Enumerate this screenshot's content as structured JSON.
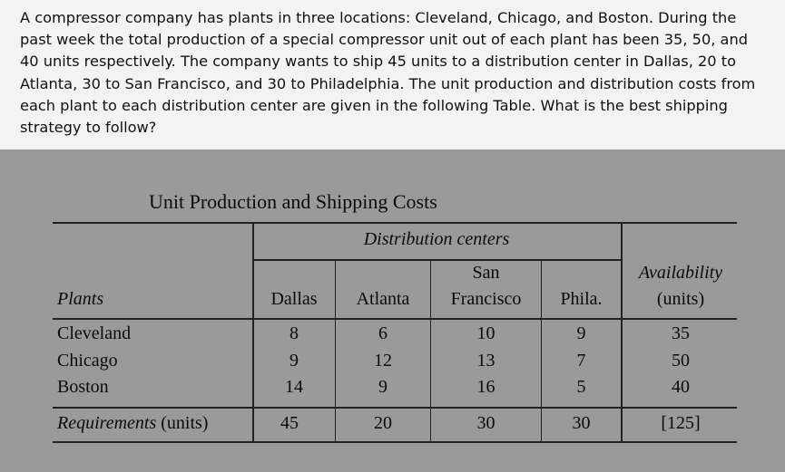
{
  "problem_text": "A compressor company has plants in three locations: Cleveland, Chicago, and Boston. During the past week the total production of a special compressor unit out of each plant has been 35, 50, and 40 units respectively. The company wants to ship 45 units to a distribution center in Dallas, 20 to Atlanta, 30 to San Francisco, and 30 to Philadelphia. The unit production and distribution costs from each plant to each distribution center are given in the following Table. What is the best shipping strategy to follow?",
  "table": {
    "title": "Unit Production and Shipping Costs",
    "group_header": "Distribution centers",
    "plants_header": "Plants",
    "columns": [
      "Dallas",
      "Atlanta",
      "San",
      "Francisco",
      "Phila."
    ],
    "availability_header": "Availability",
    "availability_units": "(units)",
    "rows": [
      {
        "plant": "Cleveland",
        "dallas": "8",
        "atlanta": "6",
        "sf": "10",
        "phila": "9",
        "availability": "35"
      },
      {
        "plant": "Chicago",
        "dallas": "9",
        "atlanta": "12",
        "sf": "13",
        "phila": "7",
        "availability": "50"
      },
      {
        "plant": "Boston",
        "dallas": "14",
        "atlanta": "9",
        "sf": "16",
        "phila": "5",
        "availability": "40"
      }
    ],
    "requirements": {
      "label": "Requirements",
      "units": " (units)",
      "dallas": "45",
      "atlanta": "20",
      "sf": "30",
      "phila": "30",
      "total": "[125]"
    }
  }
}
